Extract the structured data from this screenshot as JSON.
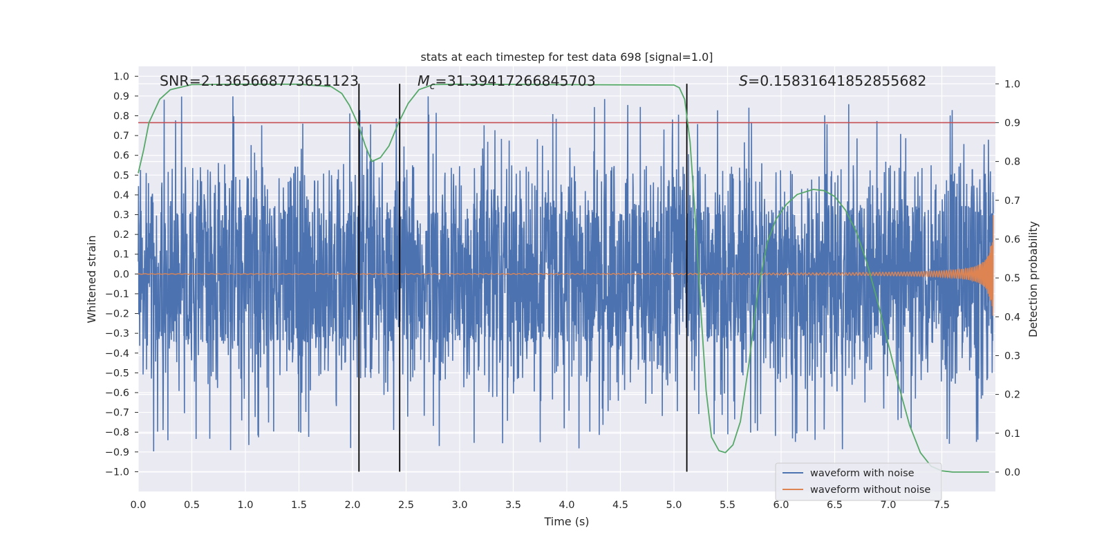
{
  "chart_data": {
    "type": "line",
    "title": "stats at each timestep for test data 698 [signal=1.0]",
    "xlabel": "Time (s)",
    "ylabel": "Whitened strain",
    "y2label": "Detection probability",
    "xlim": [
      0.0,
      8.0
    ],
    "ylim": [
      -1.1,
      1.05
    ],
    "y2lim": [
      -0.05,
      1.045
    ],
    "xticks": [
      0.0,
      0.5,
      1.0,
      1.5,
      2.0,
      2.5,
      3.0,
      3.5,
      4.0,
      4.5,
      5.0,
      5.5,
      6.0,
      6.5,
      7.0,
      7.5
    ],
    "xtick_labels": [
      "0.0",
      "0.5",
      "1.0",
      "1.5",
      "2.0",
      "2.5",
      "3.0",
      "3.5",
      "4.0",
      "4.5",
      "5.0",
      "5.5",
      "6.0",
      "6.5",
      "7.0",
      "7.5"
    ],
    "yticks": [
      -1.0,
      -0.9,
      -0.8,
      -0.7,
      -0.6,
      -0.5,
      -0.4,
      -0.3,
      -0.2,
      -0.1,
      0.0,
      0.1,
      0.2,
      0.3,
      0.4,
      0.5,
      0.6,
      0.7,
      0.8,
      0.9,
      1.0
    ],
    "ytick_labels": [
      "−1.0",
      "−0.9",
      "−0.8",
      "−0.7",
      "−0.6",
      "−0.5",
      "−0.4",
      "−0.3",
      "−0.2",
      "−0.1",
      "0.0",
      "0.1",
      "0.2",
      "0.3",
      "0.4",
      "0.5",
      "0.6",
      "0.7",
      "0.8",
      "0.9",
      "1.0"
    ],
    "y2ticks": [
      0.0,
      0.1,
      0.2,
      0.3,
      0.4,
      0.5,
      0.6,
      0.7,
      0.8,
      0.9,
      1.0
    ],
    "y2tick_labels": [
      "0.0",
      "0.1",
      "0.2",
      "0.3",
      "0.4",
      "0.5",
      "0.6",
      "0.7",
      "0.8",
      "0.9",
      "1.0"
    ],
    "grid": true,
    "legend_position": "bottom-right",
    "annotations": [
      {
        "text": "SNR=2.1365668773651123",
        "x": 0.2
      },
      {
        "math_symbol": "M",
        "math_sub": "c",
        "text": "=31.39417266845703",
        "x": 2.6
      },
      {
        "math_symbol": "S",
        "text": "=0.15831641852855682",
        "x": 5.6
      }
    ],
    "threshold_line": {
      "y2": 0.9,
      "color": "#c44e52"
    },
    "vertical_lines": [
      2.06,
      2.44,
      5.12
    ],
    "series": [
      {
        "name": "waveform with noise",
        "color": "#4c72b0",
        "axis": "left",
        "kind": "noise",
        "x_range": [
          0.0,
          7.98
        ],
        "typical_amplitude": 0.35,
        "peak_max": 0.93,
        "peak_min": -1.0
      },
      {
        "name": "waveform without noise",
        "color": "#dd8452",
        "axis": "left",
        "kind": "chirp",
        "x_range": [
          0.0,
          7.98
        ],
        "final_amplitude": 0.3
      },
      {
        "name": "detection probability",
        "color": "#55a868",
        "axis": "right",
        "kind": "line",
        "x": [
          0.0,
          0.05,
          0.1,
          0.2,
          0.3,
          0.5,
          1.0,
          1.5,
          1.8,
          1.9,
          1.97,
          2.02,
          2.06,
          2.12,
          2.18,
          2.26,
          2.34,
          2.43,
          2.52,
          2.62,
          2.75,
          3.0,
          4.0,
          5.0,
          5.05,
          5.1,
          5.15,
          5.2,
          5.25,
          5.3,
          5.35,
          5.42,
          5.48,
          5.55,
          5.62,
          5.7,
          5.78,
          5.87,
          5.95,
          6.05,
          6.15,
          6.3,
          6.4,
          6.5,
          6.6,
          6.7,
          6.8,
          6.9,
          7.0,
          7.1,
          7.2,
          7.3,
          7.4,
          7.5,
          7.6,
          7.7,
          7.8,
          7.94
        ],
        "y": [
          0.77,
          0.83,
          0.9,
          0.96,
          0.985,
          0.998,
          0.999,
          0.999,
          0.993,
          0.975,
          0.945,
          0.915,
          0.89,
          0.84,
          0.8,
          0.81,
          0.84,
          0.9,
          0.95,
          0.985,
          0.998,
          0.999,
          0.998,
          0.997,
          0.99,
          0.96,
          0.85,
          0.65,
          0.42,
          0.21,
          0.09,
          0.055,
          0.05,
          0.07,
          0.13,
          0.28,
          0.46,
          0.59,
          0.65,
          0.69,
          0.715,
          0.728,
          0.725,
          0.71,
          0.675,
          0.62,
          0.54,
          0.44,
          0.33,
          0.22,
          0.12,
          0.05,
          0.015,
          0.003,
          0.0,
          0.0,
          0.0,
          0.0
        ]
      }
    ],
    "legend": [
      "waveform with noise",
      "waveform without noise"
    ]
  }
}
